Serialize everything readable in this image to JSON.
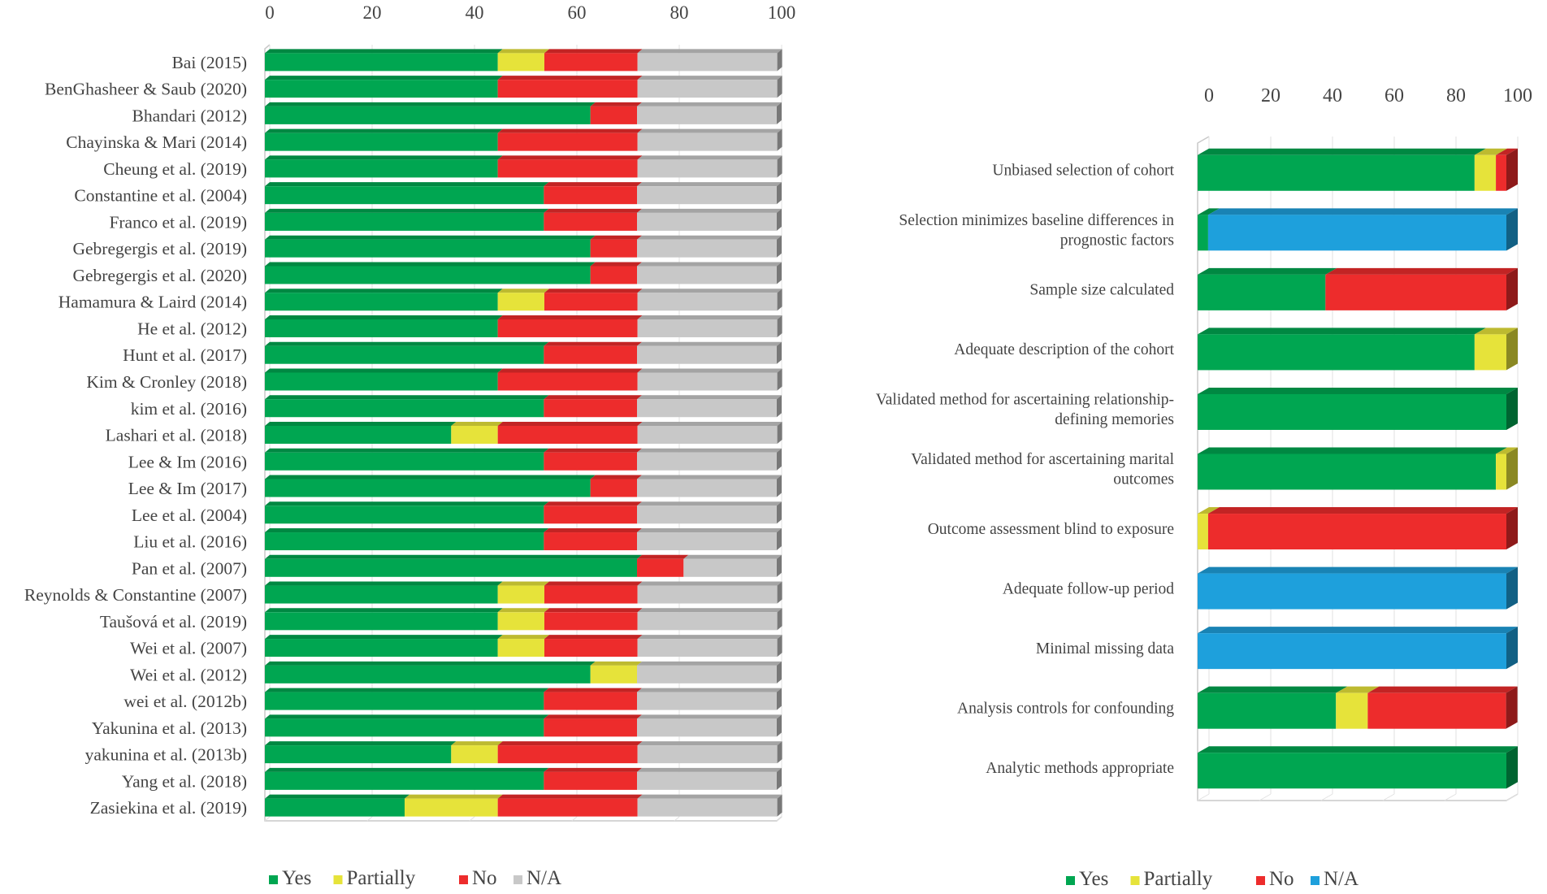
{
  "colors": {
    "Yes": "#00a651",
    "Partially": "#e6e33a",
    "No": "#ed2c2c",
    "N/A": "#c8c8c8",
    "N/A_blue": "#1ea0dc"
  },
  "chart_data": [
    {
      "type": "bar",
      "orientation": "horizontal",
      "stacked": true,
      "style": "3d",
      "title": "",
      "xlim": [
        0,
        100
      ],
      "xticks": [
        "0",
        "20",
        "40",
        "60",
        "80",
        "100"
      ],
      "axis_position": "top",
      "legend_position": "bottom",
      "categories": [
        "Bai (2015)",
        "BenGhasheer & Saub (2020)",
        "Bhandari (2012)",
        "Chayinska & Mari (2014)",
        "Cheung et al. (2019)",
        "Constantine et al. (2004)",
        "Franco et al. (2019)",
        "Gebregergis et al. (2019)",
        "Gebregergis et al. (2020)",
        "Hamamura & Laird (2014)",
        "He et al. (2012)",
        "Hunt et al. (2017)",
        "Kim & Cronley (2018)",
        "kim et al. (2016)",
        "Lashari et al. (2018)",
        "Lee & Im (2016)",
        "Lee & Im (2017)",
        "Lee et al. (2004)",
        "Liu et al. (2016)",
        "Pan et al. (2007)",
        "Reynolds & Constantine (2007)",
        "Taušová et al. (2019)",
        "Wei et al. (2007)",
        "Wei et al. (2012)",
        "wei et al. (2012b)",
        "Yakunina et al. (2013)",
        "yakunina et al. (2013b)",
        "Yang et al. (2018)",
        "Zasiekina et al. (2019)"
      ],
      "series": [
        {
          "name": "Yes",
          "color_key": "Yes",
          "values": [
            45.5,
            45.5,
            63.6,
            45.5,
            45.5,
            54.5,
            54.5,
            63.6,
            63.6,
            45.5,
            45.5,
            54.5,
            45.5,
            54.5,
            36.4,
            54.5,
            63.6,
            54.5,
            54.5,
            72.7,
            45.5,
            45.5,
            45.5,
            63.6,
            54.5,
            54.5,
            36.4,
            54.5,
            27.3
          ]
        },
        {
          "name": "Partially",
          "color_key": "Partially",
          "values": [
            9.1,
            0,
            0,
            0,
            0,
            0,
            0,
            0,
            0,
            9.1,
            0,
            0,
            0,
            0,
            9.1,
            0,
            0,
            0,
            0,
            0,
            9.1,
            9.1,
            9.1,
            9.1,
            0,
            0,
            9.1,
            0,
            18.2
          ]
        },
        {
          "name": "No",
          "color_key": "No",
          "values": [
            18.2,
            27.3,
            9.1,
            27.3,
            27.3,
            18.2,
            18.2,
            9.1,
            9.1,
            18.2,
            27.3,
            18.2,
            27.3,
            18.2,
            27.3,
            18.2,
            9.1,
            18.2,
            18.2,
            9.1,
            18.2,
            18.2,
            18.2,
            0,
            18.2,
            18.2,
            27.3,
            18.2,
            27.3
          ]
        },
        {
          "name": "N/A",
          "color_key": "N/A",
          "values": [
            27.3,
            27.3,
            27.3,
            27.3,
            27.3,
            27.3,
            27.3,
            27.3,
            27.3,
            27.3,
            27.3,
            27.3,
            27.3,
            27.3,
            27.3,
            27.3,
            27.3,
            27.3,
            27.3,
            18.2,
            27.3,
            27.3,
            27.3,
            27.3,
            27.3,
            27.3,
            27.3,
            27.3,
            27.3
          ]
        }
      ],
      "legend": [
        "Yes",
        "Partially",
        "No",
        "N/A"
      ]
    },
    {
      "type": "bar",
      "orientation": "horizontal",
      "stacked": true,
      "style": "3d",
      "title": "",
      "xlim": [
        0,
        100
      ],
      "xticks": [
        "0",
        "20",
        "40",
        "60",
        "80",
        "100"
      ],
      "axis_position": "top",
      "legend_position": "bottom",
      "categories": [
        [
          "Unbiased selection of cohort"
        ],
        [
          "Selection minimizes baseline differences in",
          "prognostic factors"
        ],
        [
          "Sample size calculated"
        ],
        [
          "Adequate description of the cohort"
        ],
        [
          "Validated method for ascertaining relationship-",
          "defining memories"
        ],
        [
          "Validated method for ascertaining marital",
          "outcomes"
        ],
        [
          "Outcome assessment blind to exposure"
        ],
        [
          "Adequate follow-up period"
        ],
        [
          "Minimal missing data"
        ],
        [
          "Analysis controls for confounding"
        ],
        [
          "Analytic methods appropriate"
        ]
      ],
      "series": [
        {
          "name": "Yes",
          "color_key": "Yes",
          "values": [
            89.7,
            3.4,
            41.4,
            89.7,
            100,
            96.6,
            0,
            0,
            0,
            44.8,
            100
          ]
        },
        {
          "name": "Partially",
          "color_key": "Partially",
          "values": [
            6.9,
            0,
            0,
            10.3,
            0,
            3.4,
            3.4,
            0,
            0,
            10.3,
            0
          ]
        },
        {
          "name": "No",
          "color_key": "No",
          "values": [
            3.4,
            0,
            58.6,
            0,
            0,
            0,
            96.6,
            0,
            0,
            44.8,
            0
          ]
        },
        {
          "name": "N/A",
          "color_key": "N/A_blue",
          "values": [
            0,
            96.6,
            0,
            0,
            0,
            0,
            0,
            100,
            100,
            0,
            0
          ]
        }
      ],
      "legend": [
        "Yes",
        "Partially",
        "No",
        "N/A"
      ]
    }
  ]
}
